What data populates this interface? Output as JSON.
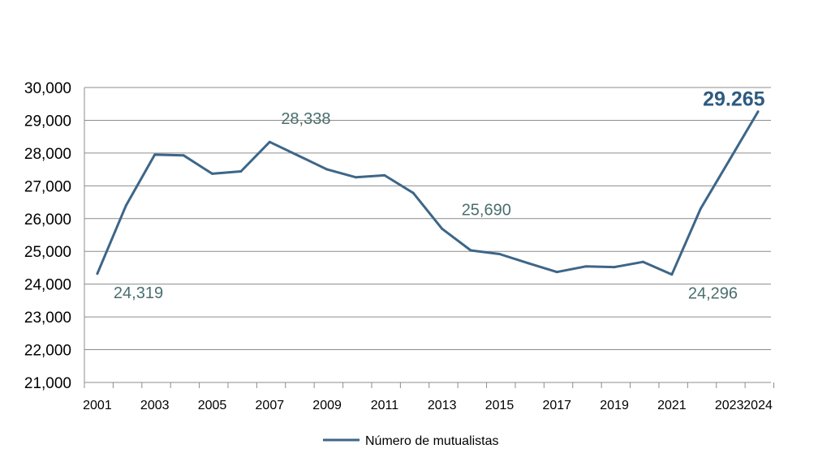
{
  "chart_data": {
    "type": "line",
    "title": "",
    "xlabel": "",
    "ylabel": "",
    "x": [
      2001,
      2002,
      2003,
      2004,
      2005,
      2006,
      2007,
      2008,
      2009,
      2010,
      2011,
      2012,
      2013,
      2014,
      2015,
      2016,
      2017,
      2018,
      2019,
      2020,
      2021,
      2022,
      2023,
      2024
    ],
    "x_tick_labels": [
      "2001",
      "2003",
      "2005",
      "2007",
      "2009",
      "2011",
      "2013",
      "2015",
      "2017",
      "2019",
      "2021",
      "2023",
      "2024"
    ],
    "ylim": [
      21000,
      30000
    ],
    "y_tick_labels": [
      "21,000",
      "22,000",
      "23,000",
      "24,000",
      "25,000",
      "26,000",
      "27,000",
      "28,000",
      "29,000",
      "30,000"
    ],
    "grid": true,
    "legend_position": "bottom",
    "series": [
      {
        "name": "Número de mutualistas",
        "color": "#3d6688",
        "values": [
          24319,
          26400,
          27950,
          27930,
          27370,
          27440,
          28338,
          27920,
          27500,
          27260,
          27320,
          26780,
          25690,
          25030,
          24920,
          24640,
          24370,
          24540,
          24520,
          24680,
          24296,
          26300,
          27780,
          29265
        ]
      }
    ],
    "annotations": [
      {
        "text": "24,319",
        "index": 0,
        "style": "normal"
      },
      {
        "text": "28,338",
        "index": 6,
        "style": "normal"
      },
      {
        "text": "25,690",
        "index": 12,
        "style": "normal"
      },
      {
        "text": "24,296",
        "index": 20,
        "style": "normal"
      },
      {
        "text": "29.265",
        "index": 23,
        "style": "strong"
      }
    ]
  }
}
